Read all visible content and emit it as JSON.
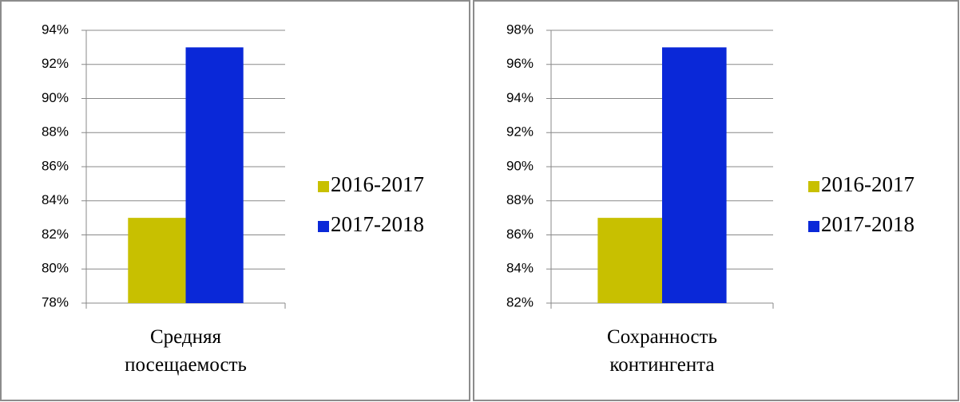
{
  "chart_data": [
    {
      "type": "bar",
      "categories": [
        "Средняя посещаемость"
      ],
      "series": [
        {
          "name": "2016-2017",
          "color": "#c8c000",
          "values": [
            83
          ]
        },
        {
          "name": "2017-2018",
          "color": "#0a28d8",
          "values": [
            93
          ]
        }
      ],
      "ylim": [
        78,
        94
      ],
      "yticks": [
        {
          "value": 78,
          "label": "78%"
        },
        {
          "value": 80,
          "label": "80%"
        },
        {
          "value": 82,
          "label": "82%"
        },
        {
          "value": 84,
          "label": "84%"
        },
        {
          "value": 86,
          "label": "86%"
        },
        {
          "value": 88,
          "label": "88%"
        },
        {
          "value": 90,
          "label": "90%"
        },
        {
          "value": 92,
          "label": "92%"
        },
        {
          "value": 94,
          "label": "94%"
        }
      ],
      "grid": true,
      "legend": "right"
    },
    {
      "type": "bar",
      "categories": [
        "Сохранность контингента"
      ],
      "series": [
        {
          "name": "2016-2017",
          "color": "#c8c000",
          "values": [
            87
          ]
        },
        {
          "name": "2017-2018",
          "color": "#0a28d8",
          "values": [
            97
          ]
        }
      ],
      "ylim": [
        82,
        98
      ],
      "yticks": [
        {
          "value": 82,
          "label": "82%"
        },
        {
          "value": 84,
          "label": "84%"
        },
        {
          "value": 86,
          "label": "86%"
        },
        {
          "value": 88,
          "label": "88%"
        },
        {
          "value": 90,
          "label": "90%"
        },
        {
          "value": 92,
          "label": "92%"
        },
        {
          "value": 94,
          "label": "94%"
        },
        {
          "value": 96,
          "label": "96%"
        },
        {
          "value": 98,
          "label": "98%"
        }
      ],
      "grid": true,
      "legend": "right"
    }
  ]
}
